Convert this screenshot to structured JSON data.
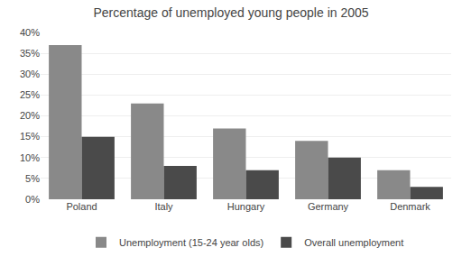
{
  "chart_data": {
    "type": "bar",
    "title": "Percentage of unemployed young people in 2005",
    "categories": [
      "Poland",
      "Italy",
      "Hungary",
      "Germany",
      "Denmark"
    ],
    "series": [
      {
        "name": "Unemployment (15-24 year olds)",
        "color": "#898989",
        "values": [
          37,
          23,
          17,
          14,
          7
        ]
      },
      {
        "name": "Overall unemployment",
        "color": "#4a4a4a",
        "values": [
          15,
          8,
          7,
          10,
          3
        ]
      }
    ],
    "ylim": [
      0,
      40
    ],
    "yticks": [
      {
        "value": 0,
        "label": "0%"
      },
      {
        "value": 5,
        "label": "5%"
      },
      {
        "value": 10,
        "label": "10%"
      },
      {
        "value": 15,
        "label": "15%"
      },
      {
        "value": 20,
        "label": "20%"
      },
      {
        "value": 25,
        "label": "25%"
      },
      {
        "value": 30,
        "label": "30%"
      },
      {
        "value": 35,
        "label": "35%"
      },
      {
        "value": 40,
        "label": "40%"
      }
    ],
    "grid": true,
    "legend": "bottom"
  }
}
